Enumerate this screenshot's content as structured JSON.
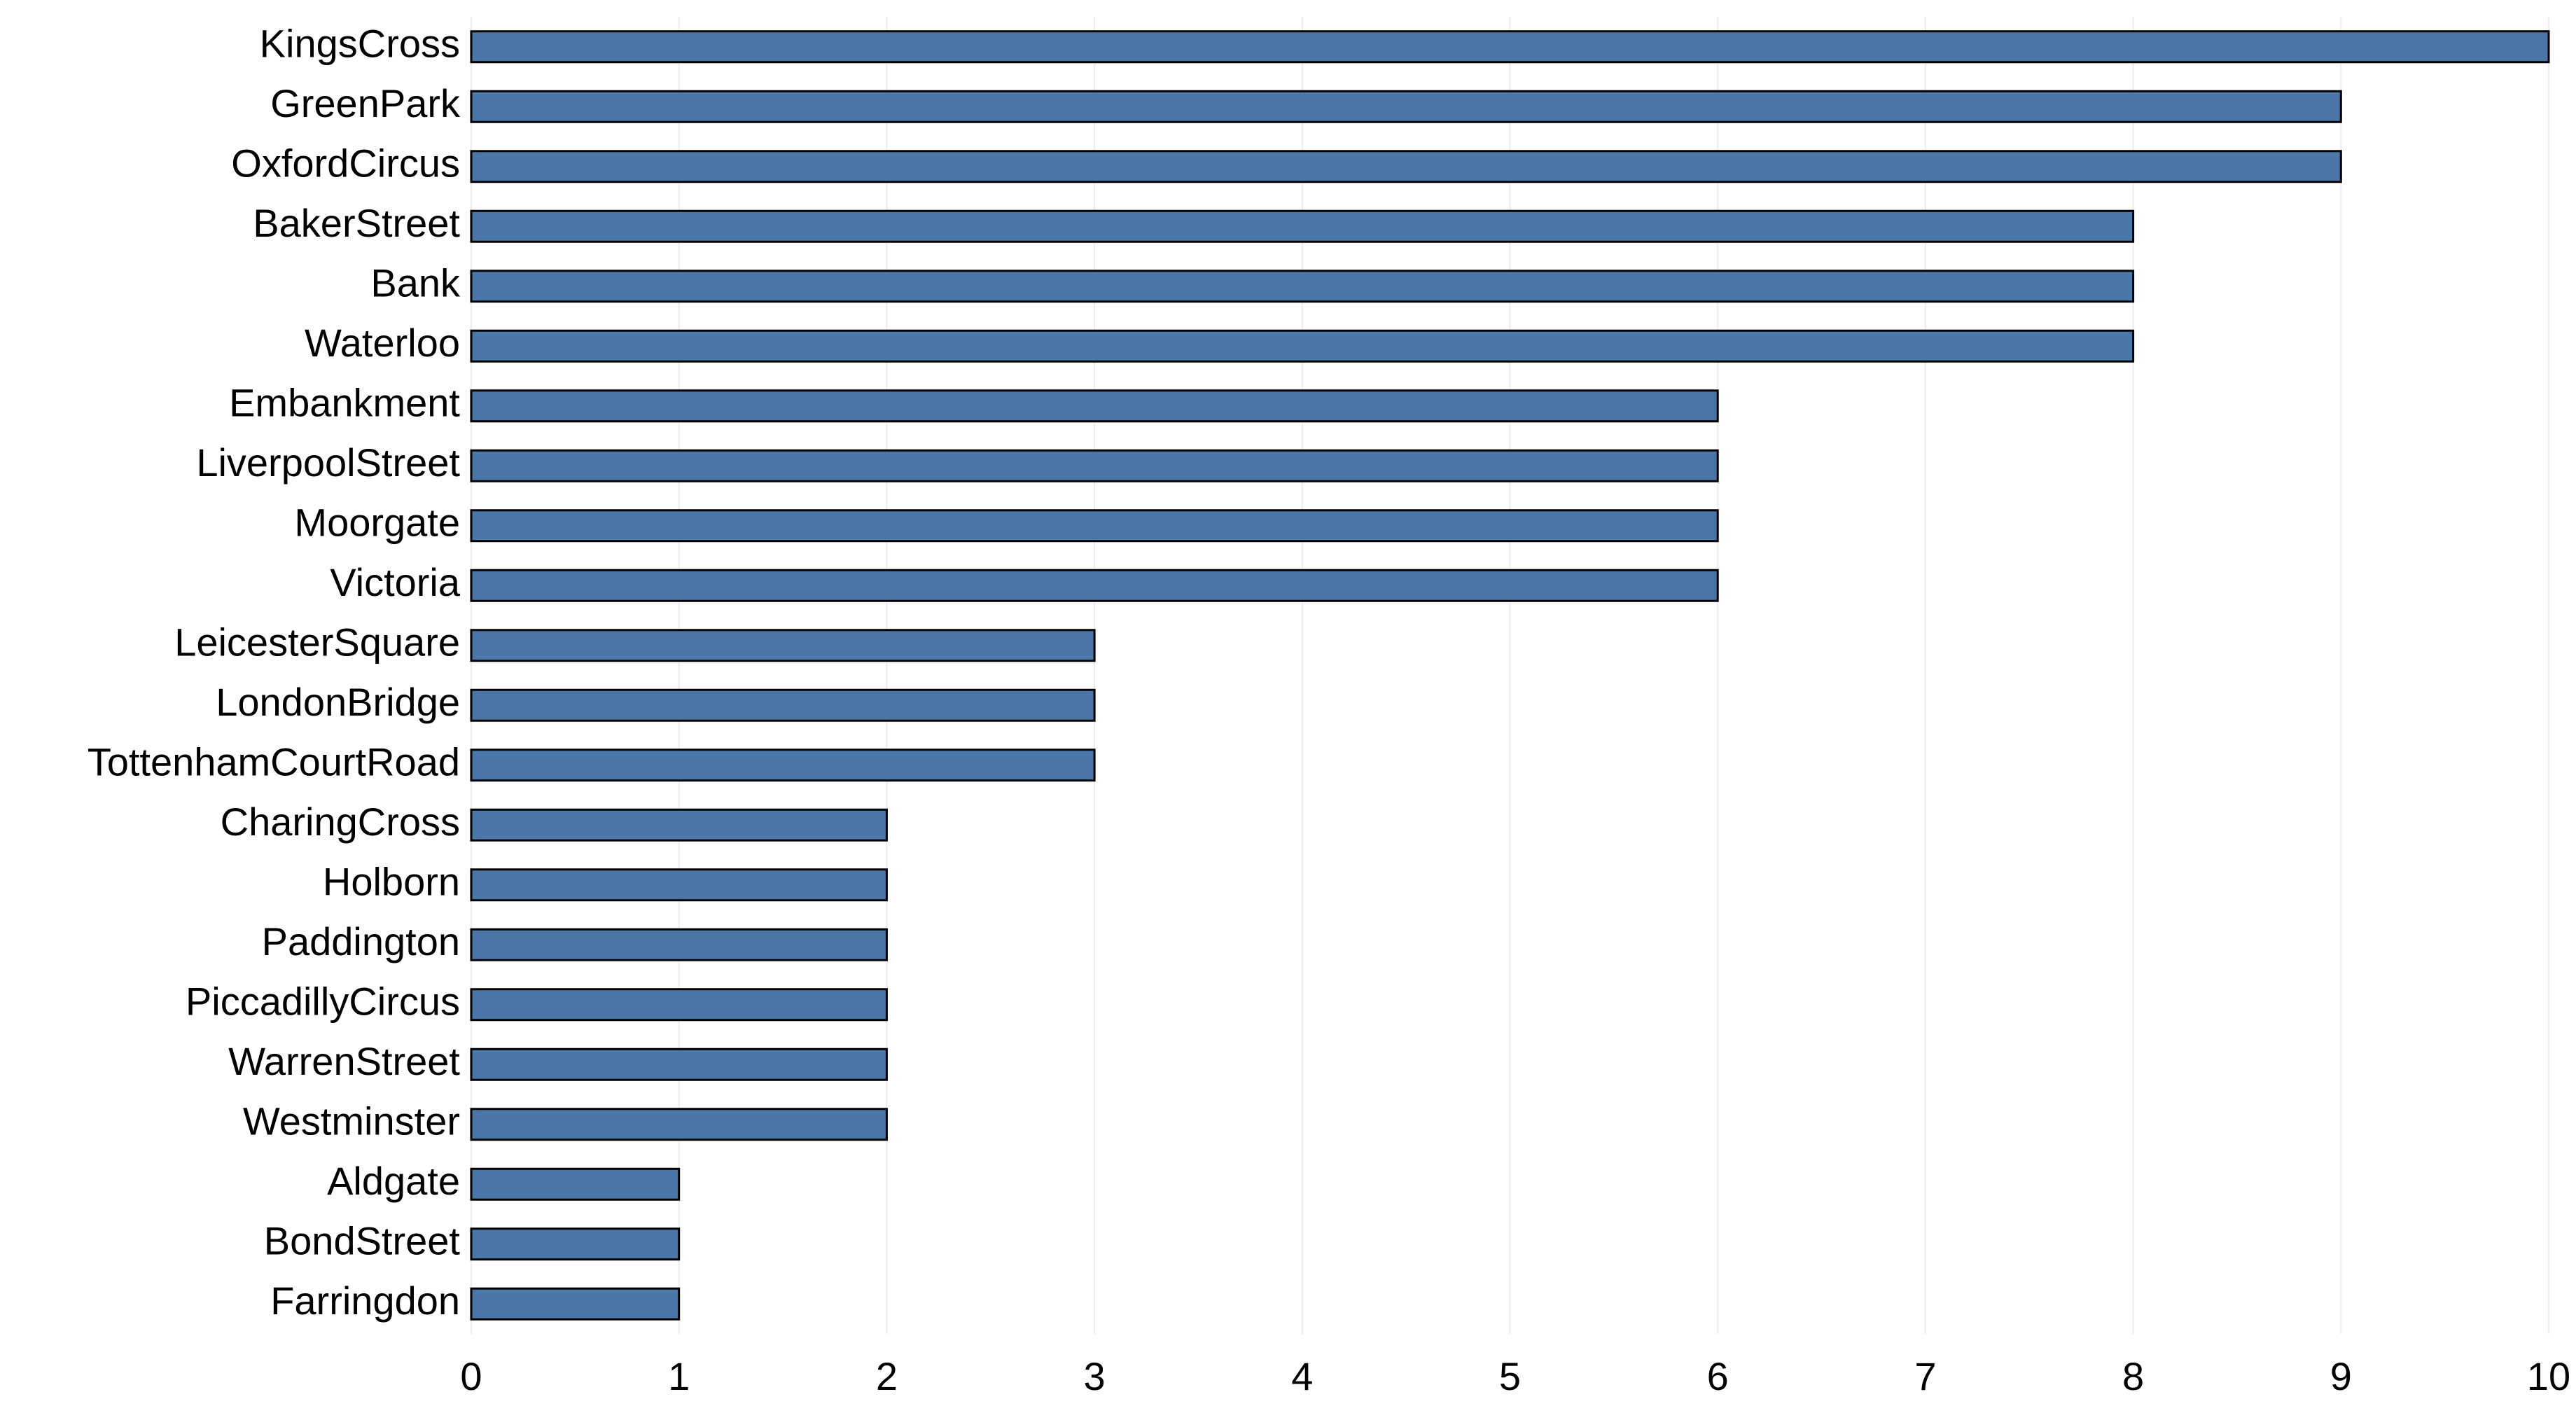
{
  "chart_data": {
    "type": "bar",
    "orientation": "horizontal",
    "title": "",
    "xlabel": "",
    "ylabel": "",
    "categories": [
      "KingsCross",
      "GreenPark",
      "OxfordCircus",
      "BakerStreet",
      "Bank",
      "Waterloo",
      "Embankment",
      "LiverpoolStreet",
      "Moorgate",
      "Victoria",
      "LeicesterSquare",
      "LondonBridge",
      "TottenhamCourtRoad",
      "CharingCross",
      "Holborn",
      "Paddington",
      "PiccadillyCircus",
      "WarrenStreet",
      "Westminster",
      "Aldgate",
      "BondStreet",
      "Farringdon"
    ],
    "values": [
      10,
      9,
      9,
      8,
      8,
      8,
      6,
      6,
      6,
      6,
      3,
      3,
      3,
      2,
      2,
      2,
      2,
      2,
      2,
      1,
      1,
      1
    ],
    "xlim": [
      0,
      10
    ],
    "xticks": [
      "0",
      "1",
      "2",
      "3",
      "4",
      "5",
      "6",
      "7",
      "8",
      "9",
      "10"
    ],
    "grid": "vertical",
    "legend": "none",
    "bar_color": "#4a76a8"
  }
}
